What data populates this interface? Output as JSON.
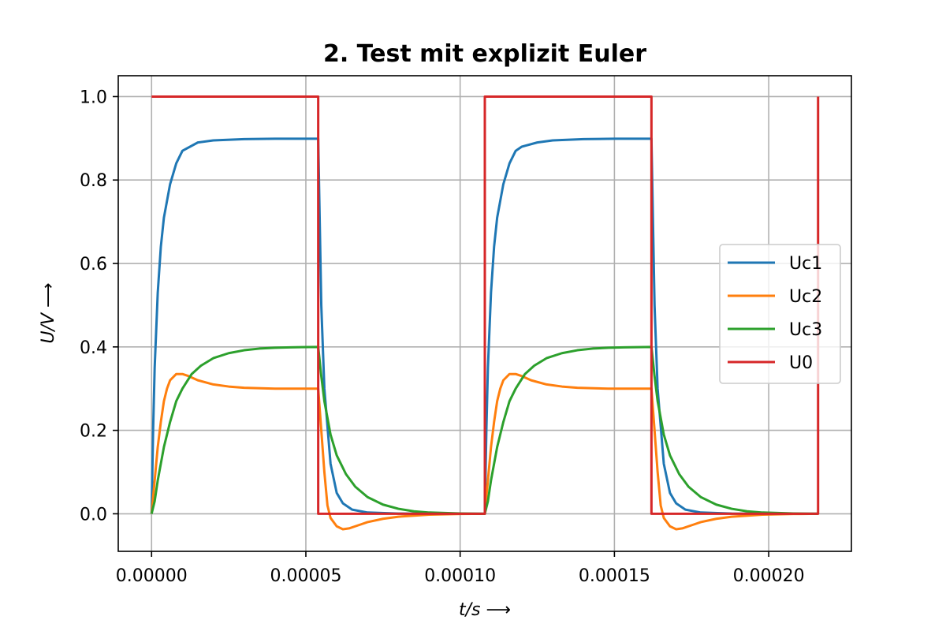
{
  "chart_data": {
    "type": "line",
    "title": "2. Test mit explizit Euler",
    "xlabel": "t/s ⟶",
    "ylabel": "U/V ⟶",
    "xlim": [
      -1.08e-05,
      0.0002268
    ],
    "ylim": [
      -0.09,
      1.05
    ],
    "xticks": [
      0.0,
      5e-05,
      0.0001,
      0.00015,
      0.0002
    ],
    "xtick_labels": [
      "0.00000",
      "0.00005",
      "0.00010",
      "0.00015",
      "0.00020"
    ],
    "yticks": [
      0.0,
      0.2,
      0.4,
      0.6,
      0.8,
      1.0
    ],
    "ytick_labels": [
      "0.0",
      "0.2",
      "0.4",
      "0.6",
      "0.8",
      "1.0"
    ],
    "grid": true,
    "legend_position": "center-right",
    "series": [
      {
        "name": "Uc1",
        "color": "#1f77b4",
        "x": [
          0.0,
          5e-07,
          1e-06,
          2e-06,
          3e-06,
          4e-06,
          6e-06,
          8e-06,
          1e-05,
          1.5e-05,
          2e-05,
          3e-05,
          4e-05,
          5.4e-05,
          5.45e-05,
          5.5e-05,
          5.6e-05,
          5.8e-05,
          6e-05,
          6.2e-05,
          6.5e-05,
          7e-05,
          8e-05,
          9e-05,
          0.000108,
          0.0001085,
          0.000109,
          0.00011,
          0.000111,
          0.000112,
          0.000114,
          0.000116,
          0.000118,
          0.00012,
          0.000125,
          0.00013,
          0.00014,
          0.00015,
          0.000162,
          0.0001625,
          0.000163,
          0.000164,
          0.000166,
          0.000168,
          0.00017,
          0.000173,
          0.000178,
          0.000188,
          0.0002,
          0.000216
        ],
        "y": [
          0.0,
          0.2,
          0.35,
          0.53,
          0.64,
          0.71,
          0.79,
          0.84,
          0.87,
          0.89,
          0.895,
          0.898,
          0.899,
          0.899,
          0.7,
          0.5,
          0.3,
          0.12,
          0.05,
          0.025,
          0.01,
          0.003,
          0.0005,
          0.0001,
          0.0,
          0.2,
          0.35,
          0.53,
          0.64,
          0.71,
          0.79,
          0.84,
          0.87,
          0.88,
          0.89,
          0.895,
          0.898,
          0.899,
          0.899,
          0.7,
          0.5,
          0.3,
          0.12,
          0.05,
          0.025,
          0.01,
          0.003,
          0.0005,
          0.0001,
          0.0
        ]
      },
      {
        "name": "Uc2",
        "color": "#ff7f0e",
        "x": [
          0.0,
          1e-06,
          2e-06,
          3e-06,
          4e-06,
          5e-06,
          6e-06,
          8e-06,
          1e-05,
          1.2e-05,
          1.5e-05,
          2e-05,
          2.5e-05,
          3e-05,
          4e-05,
          5.4e-05,
          5.5e-05,
          5.6e-05,
          5.7e-05,
          5.8e-05,
          6e-05,
          6.2e-05,
          6.4e-05,
          6.6e-05,
          6.8e-05,
          7e-05,
          7.5e-05,
          8e-05,
          9e-05,
          0.0001,
          0.000108,
          0.000109,
          0.00011,
          0.000111,
          0.000112,
          0.000113,
          0.000114,
          0.000116,
          0.000118,
          0.00012,
          0.000123,
          0.000128,
          0.000133,
          0.000138,
          0.000148,
          0.000162,
          0.000163,
          0.000164,
          0.000165,
          0.000166,
          0.000168,
          0.00017,
          0.000172,
          0.000174,
          0.000176,
          0.000178,
          0.000183,
          0.000188,
          0.000198,
          0.000208,
          0.000216
        ],
        "y": [
          0.0,
          0.08,
          0.16,
          0.22,
          0.27,
          0.3,
          0.32,
          0.335,
          0.335,
          0.33,
          0.32,
          0.31,
          0.305,
          0.302,
          0.3,
          0.3,
          0.2,
          0.1,
          0.02,
          -0.01,
          -0.03,
          -0.037,
          -0.035,
          -0.03,
          -0.025,
          -0.02,
          -0.012,
          -0.007,
          -0.002,
          -0.0005,
          0.0,
          0.08,
          0.16,
          0.22,
          0.27,
          0.3,
          0.32,
          0.335,
          0.335,
          0.33,
          0.32,
          0.31,
          0.305,
          0.302,
          0.3,
          0.3,
          0.2,
          0.1,
          0.02,
          -0.01,
          -0.03,
          -0.037,
          -0.035,
          -0.03,
          -0.025,
          -0.02,
          -0.012,
          -0.007,
          -0.002,
          -0.0005,
          0.0
        ]
      },
      {
        "name": "Uc3",
        "color": "#2ca02c",
        "x": [
          0.0,
          1e-06,
          2e-06,
          4e-06,
          6e-06,
          8e-06,
          1e-05,
          1.3e-05,
          1.6e-05,
          2e-05,
          2.5e-05,
          3e-05,
          3.5e-05,
          4e-05,
          4.5e-05,
          5.4e-05,
          5.5e-05,
          5.6e-05,
          5.8e-05,
          6e-05,
          6.3e-05,
          6.6e-05,
          7e-05,
          7.5e-05,
          8e-05,
          8.5e-05,
          9e-05,
          0.0001,
          0.000108,
          0.000109,
          0.00011,
          0.000112,
          0.000114,
          0.000116,
          0.000118,
          0.000121,
          0.000124,
          0.000128,
          0.000133,
          0.000138,
          0.000143,
          0.000148,
          0.000153,
          0.000162,
          0.000163,
          0.000164,
          0.000166,
          0.000168,
          0.000171,
          0.000174,
          0.000178,
          0.000183,
          0.000188,
          0.000193,
          0.000198,
          0.000208,
          0.000216
        ],
        "y": [
          0.0,
          0.03,
          0.08,
          0.16,
          0.22,
          0.27,
          0.3,
          0.335,
          0.355,
          0.373,
          0.385,
          0.392,
          0.396,
          0.398,
          0.399,
          0.4,
          0.33,
          0.27,
          0.19,
          0.14,
          0.095,
          0.065,
          0.04,
          0.022,
          0.012,
          0.006,
          0.003,
          0.0008,
          0.0,
          0.03,
          0.08,
          0.16,
          0.22,
          0.27,
          0.3,
          0.335,
          0.355,
          0.373,
          0.385,
          0.392,
          0.396,
          0.398,
          0.399,
          0.4,
          0.33,
          0.27,
          0.19,
          0.14,
          0.095,
          0.065,
          0.04,
          0.022,
          0.012,
          0.006,
          0.003,
          0.0008,
          0.0
        ]
      },
      {
        "name": "U0",
        "color": "#d62728",
        "x": [
          0.0,
          5.4e-05,
          5.4e-05,
          0.000108,
          0.000108,
          0.000162,
          0.000162,
          0.000216,
          0.000216
        ],
        "y": [
          1.0,
          1.0,
          0.0,
          0.0,
          1.0,
          1.0,
          0.0,
          0.0,
          1.0
        ]
      }
    ]
  }
}
